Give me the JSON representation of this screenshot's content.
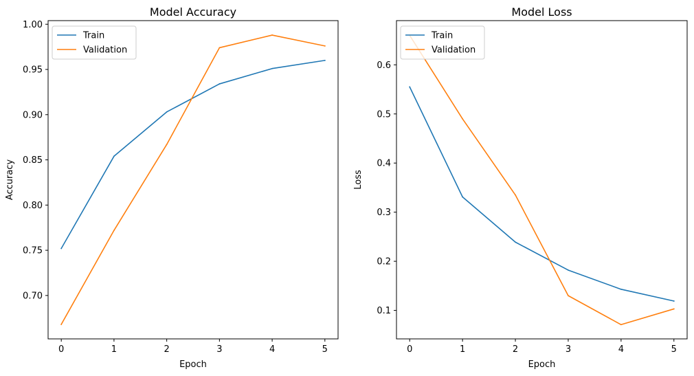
{
  "chart_data": [
    {
      "type": "line",
      "title": "Model Accuracy",
      "xlabel": "Epoch",
      "ylabel": "Accuracy",
      "x": [
        0,
        1,
        2,
        3,
        4,
        5
      ],
      "xticks": [
        "0",
        "1",
        "2",
        "3",
        "4",
        "5"
      ],
      "yticks": [
        "0.70",
        "0.75",
        "0.80",
        "0.85",
        "0.90",
        "0.95",
        "1.00"
      ],
      "xlim": [
        -0.25,
        5.25
      ],
      "ylim": [
        0.652,
        1.004
      ],
      "legend_position": "top-left",
      "grid": false,
      "series": [
        {
          "name": "Train",
          "color": "#1f77b4",
          "values": [
            0.752,
            0.854,
            0.903,
            0.934,
            0.951,
            0.96
          ]
        },
        {
          "name": "Validation",
          "color": "#ff7f0e",
          "values": [
            0.668,
            0.772,
            0.867,
            0.974,
            0.988,
            0.976
          ]
        }
      ]
    },
    {
      "type": "line",
      "title": "Model Loss",
      "xlabel": "Epoch",
      "ylabel": "Loss",
      "x": [
        0,
        1,
        2,
        3,
        4,
        5
      ],
      "xticks": [
        "0",
        "1",
        "2",
        "3",
        "4",
        "5"
      ],
      "yticks": [
        "0.1",
        "0.2",
        "0.3",
        "0.4",
        "0.5",
        "0.6"
      ],
      "xlim": [
        -0.25,
        5.25
      ],
      "ylim": [
        0.042,
        0.69
      ],
      "legend_position": "top-left",
      "grid": false,
      "series": [
        {
          "name": "Train",
          "color": "#1f77b4",
          "values": [
            0.555,
            0.331,
            0.239,
            0.182,
            0.143,
            0.119
          ]
        },
        {
          "name": "Validation",
          "color": "#ff7f0e",
          "values": [
            0.66,
            0.49,
            0.335,
            0.13,
            0.071,
            0.103
          ]
        }
      ]
    }
  ]
}
